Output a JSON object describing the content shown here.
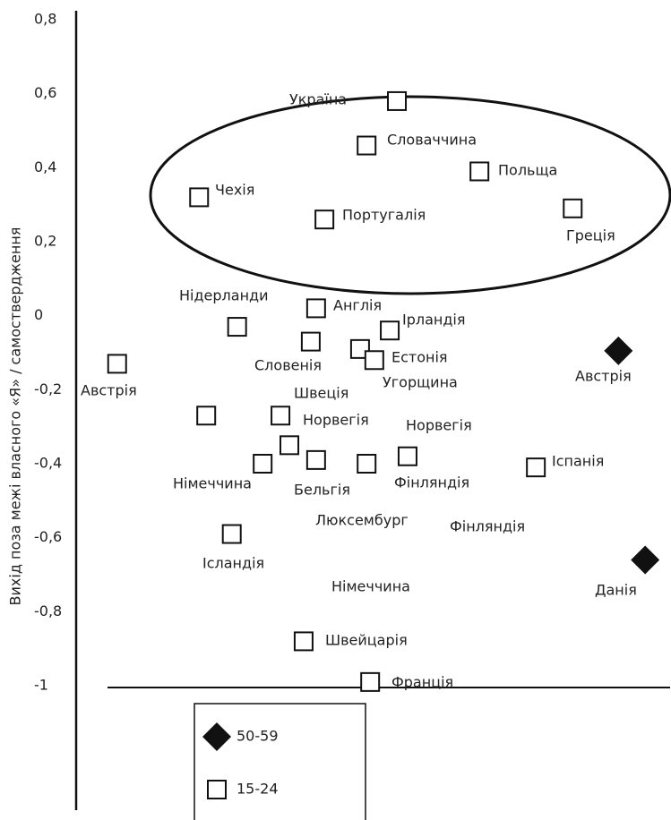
{
  "chart_data": {
    "type": "scatter",
    "y_label": "Вихід поза межі власного «Я» / самоствердження",
    "ylim": [
      -1,
      0.8
    ],
    "xlim": [
      0,
      100
    ],
    "yticks": [
      {
        "value": 0.8,
        "label": "0,8"
      },
      {
        "value": 0.6,
        "label": "0,6"
      },
      {
        "value": 0.4,
        "label": "0,4"
      },
      {
        "value": 0.2,
        "label": "0,2"
      },
      0,
      {
        "value": -0.2,
        "label": "-0,2"
      },
      {
        "value": -0.4,
        "label": "-0,4"
      },
      {
        "value": -0.6,
        "label": "-0,6"
      },
      {
        "value": -0.8,
        "label": "-0,8"
      },
      -1
    ],
    "series": [
      {
        "name": "50-59",
        "marker": "diamond",
        "color": "#111111",
        "x": [
          91.3,
          95.8
        ],
        "values": [
          -0.095,
          -0.66
        ]
      },
      {
        "name": "15-24",
        "marker": "square",
        "color": "#111111",
        "x": [
          54.0,
          48.9,
          67.9,
          20.7,
          41.8,
          83.6,
          40.4,
          27.1,
          52.8,
          39.5,
          47.8,
          50.2,
          6.9,
          21.9,
          34.4,
          35.9,
          31.4,
          40.4,
          48.9,
          55.8,
          77.4,
          26.2,
          38.3,
          49.5
        ],
        "values": [
          0.58,
          0.46,
          0.39,
          0.32,
          0.26,
          0.29,
          0.02,
          -0.03,
          -0.04,
          -0.07,
          -0.09,
          -0.12,
          -0.13,
          -0.27,
          -0.27,
          -0.35,
          -0.4,
          -0.39,
          -0.4,
          -0.38,
          -0.41,
          -0.59,
          -0.88,
          -0.99
        ]
      }
    ],
    "annotations": [
      "Україна",
      "Словаччина",
      "Польща",
      "Чехія",
      "Португалія",
      "Греція",
      "Нідерланди",
      "Англія",
      "Ірландія",
      "Словенія",
      "Естонія",
      "Угорщина",
      "Австрія",
      "Австрія",
      "Швеція",
      "Норвегія",
      "Норвегія",
      "Німеччина",
      "Бельгія",
      "Фінляндія",
      "Іспанія",
      "Люксембург",
      "Фінляндія",
      "Ісландія",
      "Німеччина",
      "Данія",
      "Швейцарія",
      "Франція"
    ]
  }
}
